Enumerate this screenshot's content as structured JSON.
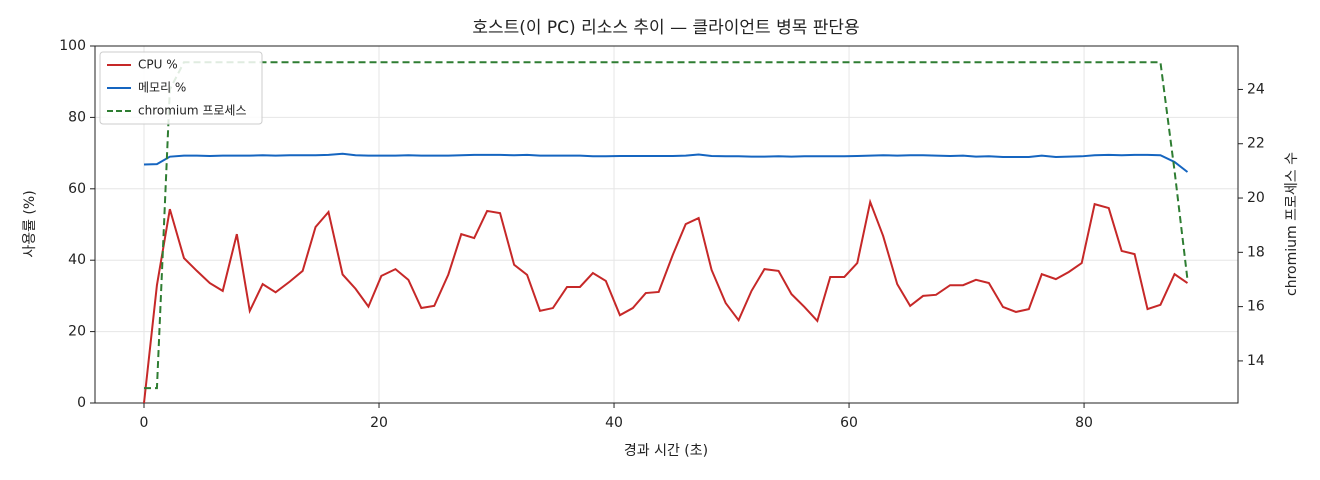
{
  "chart_data": {
    "type": "line",
    "title": "호스트(이 PC) 리소스 추이 — 클라이언트 병목 판단용",
    "xlabel": "경과 시간 (초)",
    "ylabel": "사용률 (%)",
    "y2label": "chromium 프로세스 수",
    "x": [
      0,
      1.1,
      2.2,
      3.4,
      4.5,
      5.6,
      6.7,
      7.9,
      9.0,
      10.1,
      11.2,
      12.4,
      13.5,
      14.6,
      15.7,
      16.9,
      18.0,
      19.1,
      20.2,
      21.4,
      22.5,
      23.6,
      24.7,
      25.9,
      27.0,
      28.1,
      29.2,
      30.3,
      31.5,
      32.6,
      33.7,
      34.8,
      36.0,
      37.1,
      38.2,
      39.3,
      40.5,
      41.6,
      42.7,
      43.8,
      45.0,
      46.1,
      47.2,
      48.3,
      49.5,
      50.6,
      51.7,
      52.8,
      54.0,
      55.1,
      56.2,
      57.3,
      58.4,
      59.6,
      60.7,
      61.8,
      62.9,
      64.1,
      65.2,
      66.3,
      67.4,
      68.6,
      69.7,
      70.8,
      71.9,
      73.1,
      74.2,
      75.3,
      76.4,
      77.6,
      78.7,
      79.8,
      80.9,
      82.1,
      83.2,
      84.3,
      85.4,
      86.5,
      87.7,
      88.8
    ],
    "series": [
      {
        "name": "CPU %",
        "color": "#c62828",
        "dash": false,
        "values": [
          0,
          33,
          54.3,
          40.6,
          37,
          33.6,
          31.4,
          47.3,
          25.8,
          33.3,
          31,
          34,
          37,
          49.3,
          53.5,
          36,
          32,
          27,
          35.6,
          37.5,
          34.5,
          26.6,
          27.2,
          36,
          47.3,
          46.2,
          53.8,
          53.2,
          38.7,
          35.9,
          25.8,
          26.6,
          32.5,
          32.5,
          36.4,
          34.2,
          24.6,
          26.6,
          30.8,
          31.1,
          41.5,
          50.1,
          51.8,
          37.3,
          28,
          23.2,
          31.4,
          37.5,
          37,
          30.5,
          26.9,
          23,
          35.3,
          35.3,
          39.2,
          56.3,
          46.8,
          33.3,
          27.2,
          30,
          30.3,
          33,
          33,
          34.5,
          33.6,
          26.9,
          25.5,
          26.3,
          36.1,
          34.7,
          36.7,
          39.2,
          55.7,
          54.6,
          42.6,
          41.7,
          26.3,
          27.5,
          36.1,
          33.6
        ]
      },
      {
        "name": "메모리 %",
        "color": "#1565c0",
        "dash": false,
        "values": [
          66.8,
          66.9,
          69.0,
          69.3,
          69.3,
          69.2,
          69.3,
          69.3,
          69.3,
          69.4,
          69.3,
          69.4,
          69.4,
          69.4,
          69.5,
          69.8,
          69.4,
          69.3,
          69.3,
          69.3,
          69.4,
          69.3,
          69.3,
          69.3,
          69.4,
          69.5,
          69.5,
          69.5,
          69.4,
          69.5,
          69.3,
          69.3,
          69.3,
          69.3,
          69.1,
          69.1,
          69.2,
          69.2,
          69.2,
          69.2,
          69.2,
          69.3,
          69.6,
          69.2,
          69.1,
          69.1,
          69.0,
          69.0,
          69.1,
          69.0,
          69.1,
          69.1,
          69.1,
          69.1,
          69.2,
          69.3,
          69.4,
          69.3,
          69.4,
          69.4,
          69.3,
          69.2,
          69.3,
          69.0,
          69.1,
          68.9,
          68.9,
          68.9,
          69.3,
          68.9,
          69.0,
          69.1,
          69.4,
          69.5,
          69.4,
          69.5,
          69.5,
          69.4,
          67.5,
          64.7
        ]
      },
      {
        "name": "chromium 프로세스",
        "color": "#2e7d32",
        "dash": true,
        "axis": "y2",
        "values": [
          13,
          13,
          24,
          25,
          25,
          25,
          25,
          25,
          25,
          25,
          25,
          25,
          25,
          25,
          25,
          25,
          25,
          25,
          25,
          25,
          25,
          25,
          25,
          25,
          25,
          25,
          25,
          25,
          25,
          25,
          25,
          25,
          25,
          25,
          25,
          25,
          25,
          25,
          25,
          25,
          25,
          25,
          25,
          25,
          25,
          25,
          25,
          25,
          25,
          25,
          25,
          25,
          25,
          25,
          25,
          25,
          25,
          25,
          25,
          25,
          25,
          25,
          25,
          25,
          25,
          25,
          25,
          25,
          25,
          25,
          25,
          25,
          25,
          25,
          25,
          25,
          25,
          25,
          21,
          17
        ]
      }
    ],
    "xlim": [
      -4.17,
      93.1
    ],
    "xticks": [
      0,
      20,
      40,
      60,
      80
    ],
    "ylim": [
      0,
      100
    ],
    "yticks": [
      0,
      20,
      40,
      60,
      80,
      100
    ],
    "y2lim": [
      12.45,
      25.6
    ],
    "y2ticks": [
      14,
      16,
      18,
      20,
      22,
      24
    ],
    "grid": true,
    "legend": "upper-left"
  }
}
